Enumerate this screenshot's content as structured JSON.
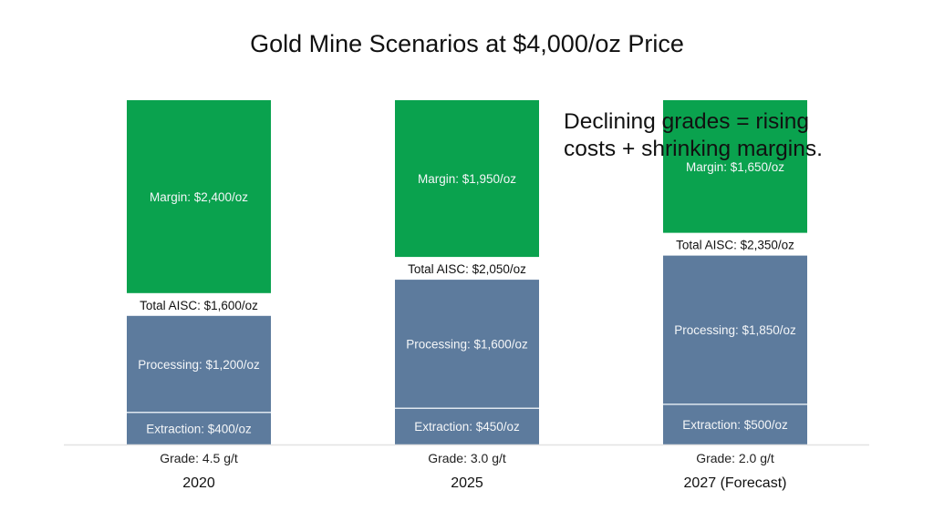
{
  "chart_data": {
    "type": "bar",
    "stacked": true,
    "title": "Gold Mine Scenarios at $4,000/oz Price",
    "xlabel": "",
    "ylabel": "",
    "grid": false,
    "gold_price_per_oz": 4000,
    "categories": [
      "2020",
      "2025",
      "2027 (Forecast)"
    ],
    "grades": [
      "Grade: 4.5 g/t",
      "Grade: 3.0 g/t",
      "Grade: 2.0 g/t"
    ],
    "grade_values_gpt": [
      4.5,
      3.0,
      2.0
    ],
    "series": [
      {
        "name": "Extraction",
        "values": [
          400,
          450,
          500
        ],
        "color": "#5d7b9d",
        "labels": [
          "Extraction: $400/oz",
          "Extraction: $450/oz",
          "Extraction: $500/oz"
        ]
      },
      {
        "name": "Processing",
        "values": [
          1200,
          1600,
          1850
        ],
        "color": "#5d7b9d",
        "labels": [
          "Processing: $1,200/oz",
          "Processing: $1,600/oz",
          "Processing: $1,850/oz"
        ]
      },
      {
        "name": "Margin",
        "values": [
          2400,
          1950,
          1650
        ],
        "color": "#0aa24e",
        "labels": [
          "Margin: $2,400/oz",
          "Margin: $1,950/oz",
          "Margin: $1,650/oz"
        ]
      }
    ],
    "totals_aisc": [
      1600,
      2050,
      2350
    ],
    "aisc_labels": [
      "Total AISC: $1,600/oz",
      "Total AISC: $2,050/oz",
      "Total AISC: $2,350/oz"
    ],
    "annotation": "Declining grades = rising\ncosts + shrinking margins.",
    "colors": {
      "cost": "#5d7b9d",
      "margin": "#0aa24e",
      "divider": "#dfe7ef",
      "baseline": "#e3e3e3"
    }
  }
}
